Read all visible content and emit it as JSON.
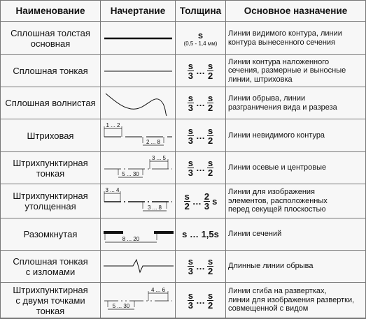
{
  "table": {
    "header": [
      "Наименование",
      "Начертание",
      "Толщина",
      "Основное назначение"
    ],
    "rows": [
      {
        "name": "Сплошная толстая\nосновная",
        "drawing_labels": [],
        "thickness": [
          "s"
        ],
        "thickness_note": "(0,5 - 1,4 мм)",
        "purpose": "Линии видимого контура, линии\nконтура вынесенного сечения"
      },
      {
        "name": "Сплошная тонкая",
        "drawing_labels": [],
        "thickness": [
          {
            "num": "s",
            "den": "3"
          },
          "…",
          {
            "num": "s",
            "den": "2"
          }
        ],
        "purpose": "Линии контура наложенного\nсечения, размерные и выносные\nлинии, штриховка"
      },
      {
        "name": "Сплошная волнистая",
        "drawing_labels": [],
        "thickness": [
          {
            "num": "s",
            "den": "3"
          },
          "…",
          {
            "num": "s",
            "den": "2"
          }
        ],
        "purpose": "Линии обрыва, линии\nразграничения вида и разреза"
      },
      {
        "name": "Штриховая",
        "drawing_labels": [
          "1 ... 2",
          "2 ... 8"
        ],
        "thickness": [
          {
            "num": "s",
            "den": "3"
          },
          "…",
          {
            "num": "s",
            "den": "2"
          }
        ],
        "purpose": "Линии невидимого контура"
      },
      {
        "name": "Штрихпунктирная\nтонкая",
        "drawing_labels": [
          "3 ... 5",
          "5 ... 30"
        ],
        "thickness": [
          {
            "num": "s",
            "den": "3"
          },
          "…",
          {
            "num": "s",
            "den": "2"
          }
        ],
        "purpose": "Линии осевые и центровые"
      },
      {
        "name": "Штрихпунктирная\nутолщенная",
        "drawing_labels": [
          "3 ... 4",
          "3 ... 8"
        ],
        "thickness": [
          {
            "num": "s",
            "den": "2"
          },
          "…",
          {
            "num": "2",
            "den": "3"
          },
          "s"
        ],
        "purpose": "Линии для изображения\nэлементов, расположенных\nперед секущей плоскостью"
      },
      {
        "name": "Разомкнутая",
        "drawing_labels": [
          "8 ... 20"
        ],
        "thickness": [
          "s … 1,5s"
        ],
        "purpose": "Линии сечений"
      },
      {
        "name": "Сплошная тонкая\nс изломами",
        "drawing_labels": [],
        "thickness": [
          {
            "num": "s",
            "den": "3"
          },
          "…",
          {
            "num": "s",
            "den": "2"
          }
        ],
        "purpose": "Длинные линии обрыва"
      },
      {
        "name": "Штрихпунктирная\nс двумя точками\nтонкая",
        "drawing_labels": [
          "4 ... 6",
          "5 ... 30"
        ],
        "thickness": [
          {
            "num": "s",
            "den": "3"
          },
          "…",
          {
            "num": "s",
            "den": "2"
          }
        ],
        "purpose": "Линии сгиба на развертках,\nлинии для изображения развертки,\nсовмещенной с видом"
      }
    ]
  }
}
